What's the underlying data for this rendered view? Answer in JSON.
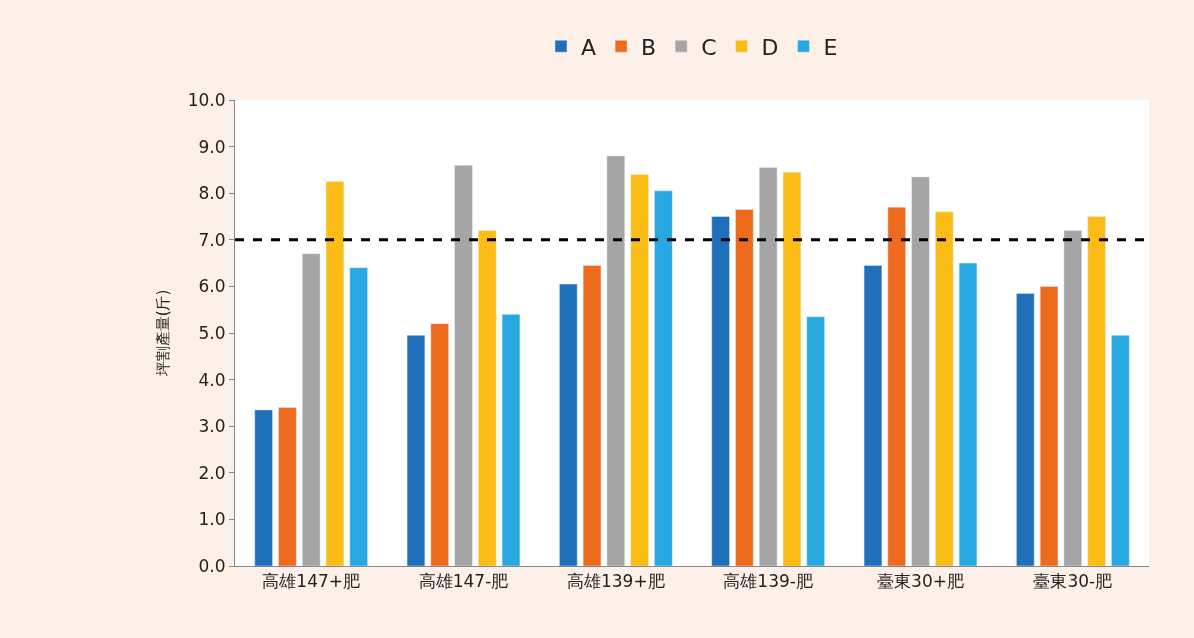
{
  "chart_data": {
    "type": "bar",
    "ylabel": "坪割產量(斤)",
    "categories": [
      "高雄147+肥",
      "高雄147-肥",
      "高雄139+肥",
      "高雄139-肥",
      "臺東30+肥",
      "臺東30-肥"
    ],
    "series": [
      {
        "name": "A",
        "color": "#1f6fba",
        "values": [
          3.35,
          4.95,
          6.05,
          7.5,
          6.45,
          5.85
        ]
      },
      {
        "name": "B",
        "color": "#ee6a1c",
        "values": [
          3.4,
          5.2,
          6.45,
          7.65,
          7.7,
          6.0
        ]
      },
      {
        "name": "C",
        "color": "#a5a5a5",
        "values": [
          6.7,
          8.6,
          8.8,
          8.55,
          8.35,
          7.2
        ]
      },
      {
        "name": "D",
        "color": "#fbbc15",
        "values": [
          8.25,
          7.2,
          8.4,
          8.45,
          7.6,
          7.5
        ]
      },
      {
        "name": "E",
        "color": "#27a8e0",
        "values": [
          6.4,
          5.4,
          8.05,
          5.35,
          6.5,
          4.95
        ]
      }
    ],
    "ylim": [
      0,
      10
    ],
    "yticks": [
      {
        "value": 0,
        "label": "0.0"
      },
      {
        "value": 1,
        "label": "1.0"
      },
      {
        "value": 2,
        "label": "2.0"
      },
      {
        "value": 3,
        "label": "3.0"
      },
      {
        "value": 4,
        "label": "4.0"
      },
      {
        "value": 5,
        "label": "5.0"
      },
      {
        "value": 6,
        "label": "6.0"
      },
      {
        "value": 7,
        "label": "7.0"
      },
      {
        "value": 8,
        "label": "8.0"
      },
      {
        "value": 9,
        "label": "9.0"
      },
      {
        "value": 10,
        "label": "10.0"
      }
    ],
    "ref_lines": [
      {
        "axis": "y",
        "value": 7.0,
        "color": "#000000",
        "line_style": "dashed"
      }
    ],
    "legend": "top"
  }
}
